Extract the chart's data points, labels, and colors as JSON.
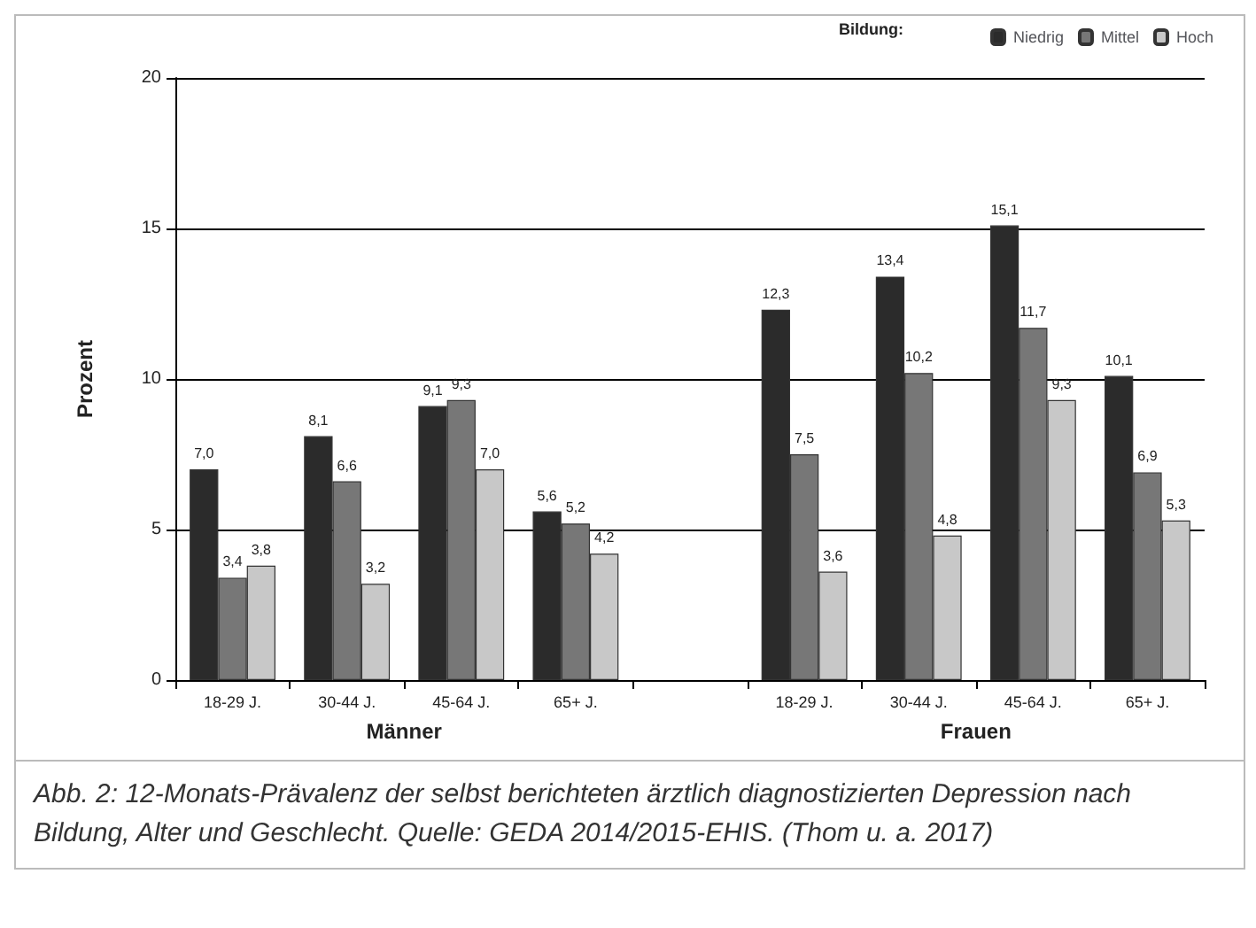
{
  "chart_data": {
    "type": "bar",
    "ylabel": "Prozent",
    "legend_title": "Bildung:",
    "categories": [
      "18-29 J.",
      "30-44 J.",
      "45-64 J.",
      "65+ J.",
      null,
      "18-29 J.",
      "30-44 J.",
      "45-64 J.",
      "65+ J."
    ],
    "series": [
      {
        "name": "Niedrig",
        "color": "#2b2b2b",
        "values": [
          7.0,
          8.1,
          9.1,
          5.6,
          null,
          12.3,
          13.4,
          15.1,
          10.1
        ],
        "value_labels": [
          "7,0",
          "8,1",
          "9,1",
          "5,6",
          null,
          "12,3",
          "13,4",
          "15,1",
          "10,1"
        ]
      },
      {
        "name": "Mittel",
        "color": "#777777",
        "values": [
          3.4,
          6.6,
          9.3,
          5.2,
          null,
          7.5,
          10.2,
          11.7,
          6.9
        ],
        "value_labels": [
          "3,4",
          "6,6",
          "9,3",
          "5,2",
          null,
          "7,5",
          "10,2",
          "11,7",
          "6,9"
        ]
      },
      {
        "name": "Hoch",
        "color": "#c8c8c8",
        "values": [
          3.8,
          3.2,
          7.0,
          4.2,
          null,
          3.6,
          4.8,
          9.3,
          5.3
        ],
        "value_labels": [
          "3,8",
          "3,2",
          "7,0",
          "4,2",
          null,
          "3,6",
          "4,8",
          "9,3",
          "5,3"
        ]
      }
    ],
    "ylim": [
      0,
      20
    ],
    "yticks": [
      0,
      5,
      10,
      15,
      20
    ],
    "grid": "y",
    "legend": "top right",
    "annotations": [
      "Männer",
      "Frauen",
      "Abb. 2: 12-Monats-Prävalenz der selbst berichteten ärztlich diagnostizierten Depression nach Bildung, Alter und Geschlecht. Quelle: GEDA 2014/2015-EHIS. (Thom u. a. 2017)"
    ]
  }
}
